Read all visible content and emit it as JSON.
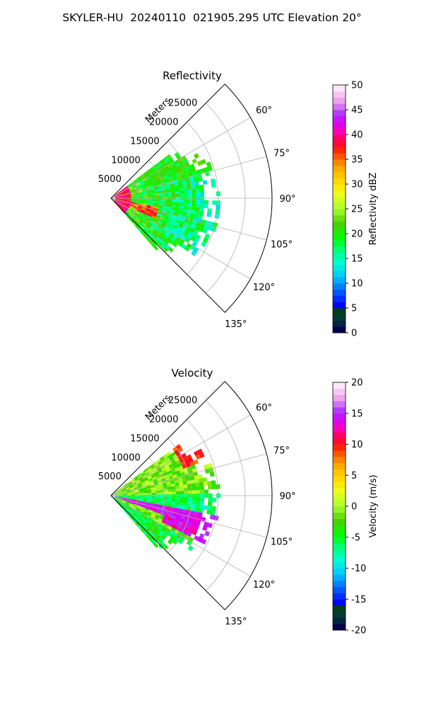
{
  "suptitle": "SKYLER-HU  20240110  021905.295 UTC Elevation 20°",
  "chart_data": [
    {
      "type": "polar-sector-field",
      "title": "Reflectivity",
      "radial_axis": {
        "label": "Meters",
        "ticks": [
          5000,
          10000,
          15000,
          20000,
          25000
        ],
        "max": 30000
      },
      "angular_axis": {
        "ticks": [
          60,
          75,
          90,
          105,
          120,
          135
        ],
        "range_deg": [
          45,
          135
        ]
      },
      "grid": true,
      "colorbar": {
        "label": "Reflectivity dBZ",
        "range": [
          0,
          50
        ],
        "ticks": [
          0,
          5,
          10,
          15,
          20,
          25,
          30,
          35,
          40,
          45,
          50
        ]
      },
      "colors": {
        "low": "#00004c",
        "high": "#fde6f7"
      }
    },
    {
      "type": "polar-sector-field",
      "title": "Velocity",
      "radial_axis": {
        "label": "Meters",
        "ticks": [
          5000,
          10000,
          15000,
          20000,
          25000
        ],
        "max": 30000
      },
      "angular_axis": {
        "ticks": [
          60,
          75,
          90,
          105,
          120,
          135
        ],
        "range_deg": [
          45,
          135
        ]
      },
      "grid": true,
      "colorbar": {
        "label": "Velocity (m/s)",
        "range": [
          -20,
          20
        ],
        "ticks": [
          -20,
          -15,
          -10,
          -5,
          0,
          5,
          10,
          15,
          20
        ]
      },
      "colors": {
        "low": "#00004c",
        "high": "#fde6f7"
      }
    }
  ]
}
